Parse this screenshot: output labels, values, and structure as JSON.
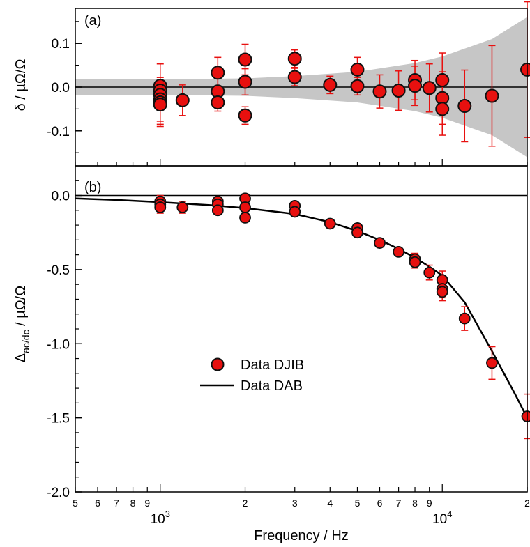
{
  "chart_data": [
    {
      "panel": "(a)",
      "type": "scatter",
      "ylabel": "δ / µΩ/Ω",
      "xscale": "log",
      "xlim": [
        500,
        20000
      ],
      "ylim": [
        -0.18,
        0.18
      ],
      "yticks": [
        {
          "value": 0.1,
          "label": "0.1"
        },
        {
          "value": 0.0,
          "label": "0.0"
        },
        {
          "value": -0.1,
          "label": "-0.1"
        }
      ],
      "reference_line": 0,
      "band": {
        "description": "uncertainty band",
        "half_width_at": [
          {
            "x": 500,
            "w": 0.018
          },
          {
            "x": 1000,
            "w": 0.018
          },
          {
            "x": 2000,
            "w": 0.02
          },
          {
            "x": 3000,
            "w": 0.025
          },
          {
            "x": 5000,
            "w": 0.035
          },
          {
            "x": 8000,
            "w": 0.055
          },
          {
            "x": 10000,
            "w": 0.07
          },
          {
            "x": 15000,
            "w": 0.11
          },
          {
            "x": 20000,
            "w": 0.16
          }
        ]
      },
      "series": [
        {
          "marker": "red circle with black edge",
          "x": [
            1000,
            1000,
            1000,
            1000,
            1000,
            1000,
            1200,
            1600,
            1600,
            1600,
            2000,
            2000,
            2000,
            3000,
            3000,
            4000,
            5000,
            5000,
            6000,
            7000,
            8000,
            8000,
            9000,
            10000,
            10000,
            10000,
            12000,
            15000,
            20000
          ],
          "y": [
            0.003,
            -0.008,
            -0.018,
            -0.028,
            -0.035,
            -0.04,
            -0.03,
            0.033,
            -0.01,
            -0.035,
            0.063,
            0.012,
            -0.065,
            0.065,
            0.023,
            0.005,
            0.04,
            0.002,
            -0.01,
            -0.008,
            0.016,
            0.003,
            -0.002,
            0.016,
            -0.025,
            -0.05,
            -0.043,
            -0.02,
            0.04
          ],
          "err": [
            0.05,
            0.02,
            0.02,
            0.05,
            0.05,
            0.05,
            0.035,
            0.035,
            0.03,
            0.02,
            0.035,
            0.03,
            0.02,
            0.02,
            0.02,
            0.02,
            0.028,
            0.02,
            0.038,
            0.045,
            0.045,
            0.045,
            0.055,
            0.062,
            0.06,
            0.06,
            0.082,
            0.115,
            0.155
          ]
        }
      ]
    },
    {
      "panel": "(b)",
      "type": "scatter",
      "xlabel": "Frequency / Hz",
      "ylabel_main": "Δ",
      "ylabel_sub": "ac/dc",
      "ylabel_rest": " / µΩ/Ω",
      "xscale": "log",
      "xlim": [
        500,
        20000
      ],
      "ylim": [
        -2.0,
        0.2
      ],
      "yticks": [
        {
          "value": 0.0,
          "label": "0.0"
        },
        {
          "value": -0.5,
          "label": "-0.5"
        },
        {
          "value": -1.0,
          "label": "-1.0"
        },
        {
          "value": -1.5,
          "label": "-1.5"
        },
        {
          "value": -2.0,
          "label": "-2.0"
        }
      ],
      "xticks_minor": [
        {
          "value": 500,
          "label": "5"
        },
        {
          "value": 600,
          "label": "6"
        },
        {
          "value": 700,
          "label": "7"
        },
        {
          "value": 800,
          "label": "8"
        },
        {
          "value": 900,
          "label": "9"
        },
        {
          "value": 2000,
          "label": "2"
        },
        {
          "value": 3000,
          "label": "3"
        },
        {
          "value": 4000,
          "label": "4"
        },
        {
          "value": 5000,
          "label": "5"
        },
        {
          "value": 6000,
          "label": "6"
        },
        {
          "value": 7000,
          "label": "7"
        },
        {
          "value": 8000,
          "label": "8"
        },
        {
          "value": 9000,
          "label": "9"
        },
        {
          "value": 20000,
          "label": "2"
        }
      ],
      "xticks_decade": [
        {
          "value": 1000,
          "base": "10",
          "exp": "3"
        },
        {
          "value": 10000,
          "base": "10",
          "exp": "4"
        }
      ],
      "reference_line": 0,
      "legend": {
        "position": "center-left",
        "entries": [
          {
            "label": "Data DJIB",
            "marker": "circle"
          },
          {
            "label": "Data DAB",
            "marker": "line"
          }
        ]
      },
      "series": [
        {
          "name": "Data DJIB",
          "x": [
            1000,
            1000,
            1000,
            1200,
            1600,
            1600,
            1600,
            2000,
            2000,
            2000,
            3000,
            3000,
            4000,
            5000,
            5000,
            6000,
            7000,
            8000,
            8000,
            9000,
            10000,
            10000,
            10000,
            12000,
            15000,
            20000
          ],
          "y": [
            -0.04,
            -0.06,
            -0.08,
            -0.08,
            -0.04,
            -0.06,
            -0.1,
            -0.02,
            -0.08,
            -0.15,
            -0.07,
            -0.11,
            -0.19,
            -0.22,
            -0.25,
            -0.32,
            -0.38,
            -0.43,
            -0.45,
            -0.52,
            -0.57,
            -0.63,
            -0.65,
            -0.83,
            -1.13,
            -1.49
          ],
          "err": [
            0.04,
            0.04,
            0.04,
            0.04,
            0.03,
            0.03,
            0.03,
            0.03,
            0.03,
            0.03,
            0.02,
            0.02,
            0.02,
            0.03,
            0.03,
            0.03,
            0.03,
            0.04,
            0.04,
            0.05,
            0.06,
            0.06,
            0.06,
            0.08,
            0.11,
            0.15
          ]
        },
        {
          "name": "Data DAB",
          "type": "line",
          "x": [
            500,
            700,
            1000,
            1500,
            2000,
            3000,
            4000,
            5000,
            6000,
            7000,
            8000,
            9000,
            10000,
            12000,
            15000,
            18000,
            20000
          ],
          "y": [
            -0.02,
            -0.03,
            -0.045,
            -0.065,
            -0.085,
            -0.125,
            -0.18,
            -0.24,
            -0.3,
            -0.36,
            -0.42,
            -0.48,
            -0.54,
            -0.72,
            -1.05,
            -1.33,
            -1.5
          ]
        }
      ]
    }
  ]
}
